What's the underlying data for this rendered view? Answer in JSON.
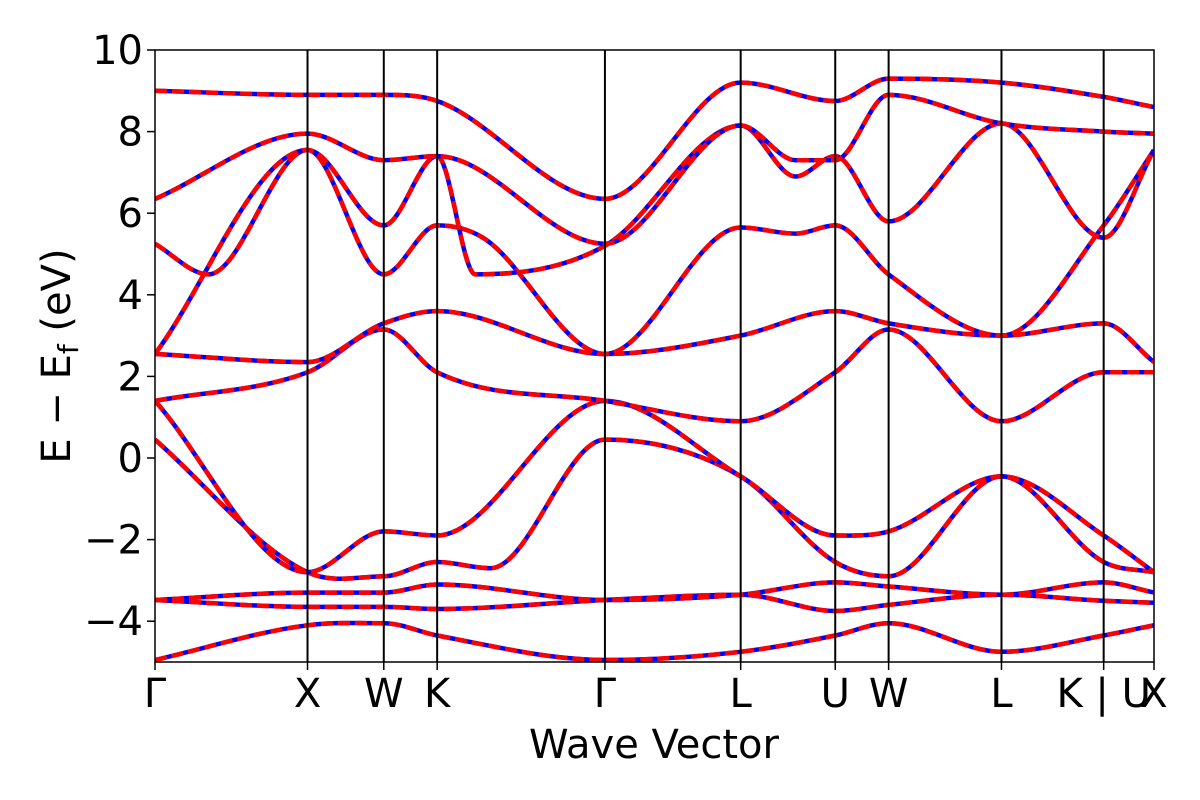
{
  "chart_data": {
    "type": "line",
    "xlabel": "Wave Vector",
    "ylabel": {
      "main": "E − E",
      "sub": "f",
      "unit": " (eV)"
    },
    "ylim": [
      -5,
      10
    ],
    "yticks": [
      -4,
      -2,
      0,
      2,
      4,
      6,
      8,
      10
    ],
    "ytick_labels": [
      "−4",
      "−2",
      "0",
      "2",
      "4",
      "6",
      "8",
      "10"
    ],
    "xlim": [
      0,
      6.55
    ],
    "kpoints": [
      {
        "label": "Γ",
        "x": 0.0
      },
      {
        "label": "X",
        "x": 1.0
      },
      {
        "label": "W",
        "x": 1.5
      },
      {
        "label": "K",
        "x": 1.85
      },
      {
        "label": "Γ",
        "x": 2.95
      },
      {
        "label": "L",
        "x": 3.84
      },
      {
        "label": "U",
        "x": 4.46
      },
      {
        "label": "W",
        "x": 4.81
      },
      {
        "label": "L",
        "x": 5.55
      },
      {
        "label": "K | U",
        "x": 6.22
      },
      {
        "label": "X",
        "x": 6.55
      }
    ],
    "grid": false,
    "legend": "none",
    "colors": {
      "band_base": "#0000ff",
      "band_overlay": "#ff0000",
      "kpoint_line": "#000000"
    },
    "series": [
      {
        "x": [
          0,
          1.0,
          1.5,
          1.85,
          2.95,
          3.84,
          4.46,
          4.81,
          5.55,
          6.22,
          6.55
        ],
        "values": [
          -4.95,
          -4.1,
          -4.05,
          -4.35,
          -4.95,
          -4.75,
          -4.35,
          -4.05,
          -4.75,
          -4.35,
          -4.1
        ]
      },
      {
        "x": [
          0,
          1.0,
          1.5,
          1.85,
          2.95,
          3.84,
          4.46,
          4.81,
          5.55,
          6.22,
          6.55
        ],
        "values": [
          -3.48,
          -3.65,
          -3.65,
          -3.7,
          -3.48,
          -3.35,
          -3.75,
          -3.6,
          -3.35,
          -3.5,
          -3.55
        ]
      },
      {
        "x": [
          0,
          1.0,
          1.5,
          1.85,
          2.95,
          3.84,
          4.46,
          4.81,
          5.55,
          6.22,
          6.55
        ],
        "values": [
          -3.48,
          -3.3,
          -3.3,
          -3.1,
          -3.48,
          -3.35,
          -3.05,
          -3.15,
          -3.35,
          -3.05,
          -3.3
        ]
      },
      {
        "x": [
          0,
          1.0,
          1.5,
          1.85,
          2.2,
          2.95,
          3.84,
          4.46,
          4.81,
          5.55,
          6.22,
          6.55
        ],
        "values": [
          0.45,
          -2.8,
          -2.9,
          -2.55,
          -2.7,
          0.45,
          -0.45,
          -2.55,
          -2.9,
          -0.45,
          -2.55,
          -2.8
        ]
      },
      {
        "x": [
          0,
          1.0,
          1.5,
          1.85,
          2.95,
          3.84,
          4.46,
          4.81,
          5.55,
          6.22,
          6.55
        ],
        "values": [
          1.4,
          -2.8,
          -1.8,
          -1.9,
          1.4,
          -0.45,
          -1.9,
          -1.8,
          -0.45,
          -1.9,
          -2.8
        ]
      },
      {
        "x": [
          0,
          1.0,
          1.5,
          1.85,
          2.95,
          3.84,
          4.46,
          4.81,
          5.55,
          6.22,
          6.55
        ],
        "values": [
          1.4,
          2.1,
          3.15,
          2.1,
          1.4,
          0.9,
          2.1,
          3.15,
          0.9,
          2.1,
          2.1
        ]
      },
      {
        "x": [
          0,
          1.0,
          1.5,
          1.85,
          2.95,
          3.84,
          4.46,
          4.81,
          5.55,
          6.22,
          6.55
        ],
        "values": [
          2.55,
          2.35,
          3.3,
          3.6,
          2.55,
          3.0,
          3.6,
          3.3,
          3.0,
          3.3,
          2.35
        ]
      },
      {
        "x": [
          0,
          1.0,
          1.5,
          1.85,
          2.15,
          2.95,
          3.84,
          4.2,
          4.46,
          4.81,
          5.55,
          6.22,
          6.55
        ],
        "values": [
          2.55,
          7.55,
          4.5,
          5.7,
          5.4,
          2.55,
          5.65,
          5.5,
          5.7,
          4.5,
          3.0,
          5.7,
          7.55
        ]
      },
      {
        "x": [
          0,
          0.35,
          1.0,
          1.5,
          1.85,
          2.1,
          2.95,
          3.84,
          4.2,
          4.46,
          4.81,
          5.55,
          6.22,
          6.55
        ],
        "values": [
          5.25,
          4.5,
          7.55,
          5.7,
          7.4,
          4.5,
          5.2,
          8.15,
          6.9,
          7.4,
          5.8,
          8.2,
          5.4,
          7.55
        ]
      },
      {
        "x": [
          0,
          1.0,
          1.5,
          1.85,
          2.95,
          3.84,
          4.2,
          4.46,
          4.81,
          5.55,
          6.22,
          6.55
        ],
        "values": [
          6.35,
          7.95,
          7.3,
          7.4,
          5.25,
          8.15,
          7.3,
          7.3,
          8.9,
          8.2,
          8.0,
          7.95
        ]
      },
      {
        "x": [
          0,
          1.0,
          1.5,
          1.85,
          2.95,
          3.84,
          4.46,
          4.81,
          5.55,
          6.22,
          6.55
        ],
        "values": [
          9.0,
          8.9,
          8.9,
          8.75,
          6.35,
          9.2,
          8.75,
          9.3,
          9.2,
          8.85,
          8.6
        ]
      }
    ]
  }
}
